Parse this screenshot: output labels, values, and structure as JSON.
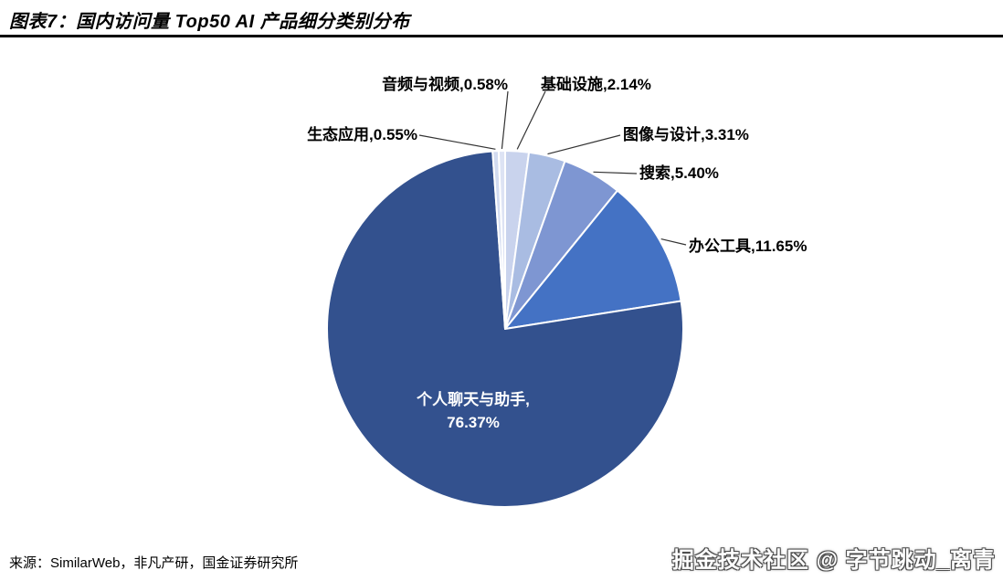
{
  "header": {
    "title": "图表7：国内访问量 Top50 AI 产品细分类别分布"
  },
  "chart_data": {
    "type": "pie",
    "title": "国内访问量 Top50 AI 产品细分类别分布",
    "unit": "%",
    "direction": "clockwise",
    "start_angle_deg": 0,
    "legend_position": "none",
    "slices": [
      {
        "key": "infrastructure",
        "label": "基础设施",
        "value": 2.14,
        "display": "基础设施,2.14%",
        "color": "#c9d3ed"
      },
      {
        "key": "image-design",
        "label": "图像与设计",
        "value": 3.31,
        "display": "图像与设计,3.31%",
        "color": "#a9bce2"
      },
      {
        "key": "search",
        "label": "搜索",
        "value": 5.4,
        "display": "搜索,5.40%",
        "color": "#7e96d2"
      },
      {
        "key": "office-tools",
        "label": "办公工具",
        "value": 11.65,
        "display": "办公工具,11.65%",
        "color": "#4472c4"
      },
      {
        "key": "personal-chat-assistant",
        "label": "个人聊天与助手",
        "value": 76.37,
        "display": "个人聊天与助手,76.37%",
        "color": "#33518e"
      },
      {
        "key": "ecosystem-apps",
        "label": "生态应用",
        "value": 0.55,
        "display": "生态应用,0.55%",
        "color": "#d2dbf0"
      },
      {
        "key": "audio-video",
        "label": "音频与视频",
        "value": 0.58,
        "display": "音频与视频,0.58%",
        "color": "#dde3f4"
      }
    ],
    "inner_label": {
      "line1": "个人聊天与助手,",
      "line2": "76.37%"
    }
  },
  "footer": {
    "source": "来源：SimilarWeb，非凡产研，国金证券研究所",
    "watermark": "掘金技术社区 @ 字节跳动_离青"
  }
}
